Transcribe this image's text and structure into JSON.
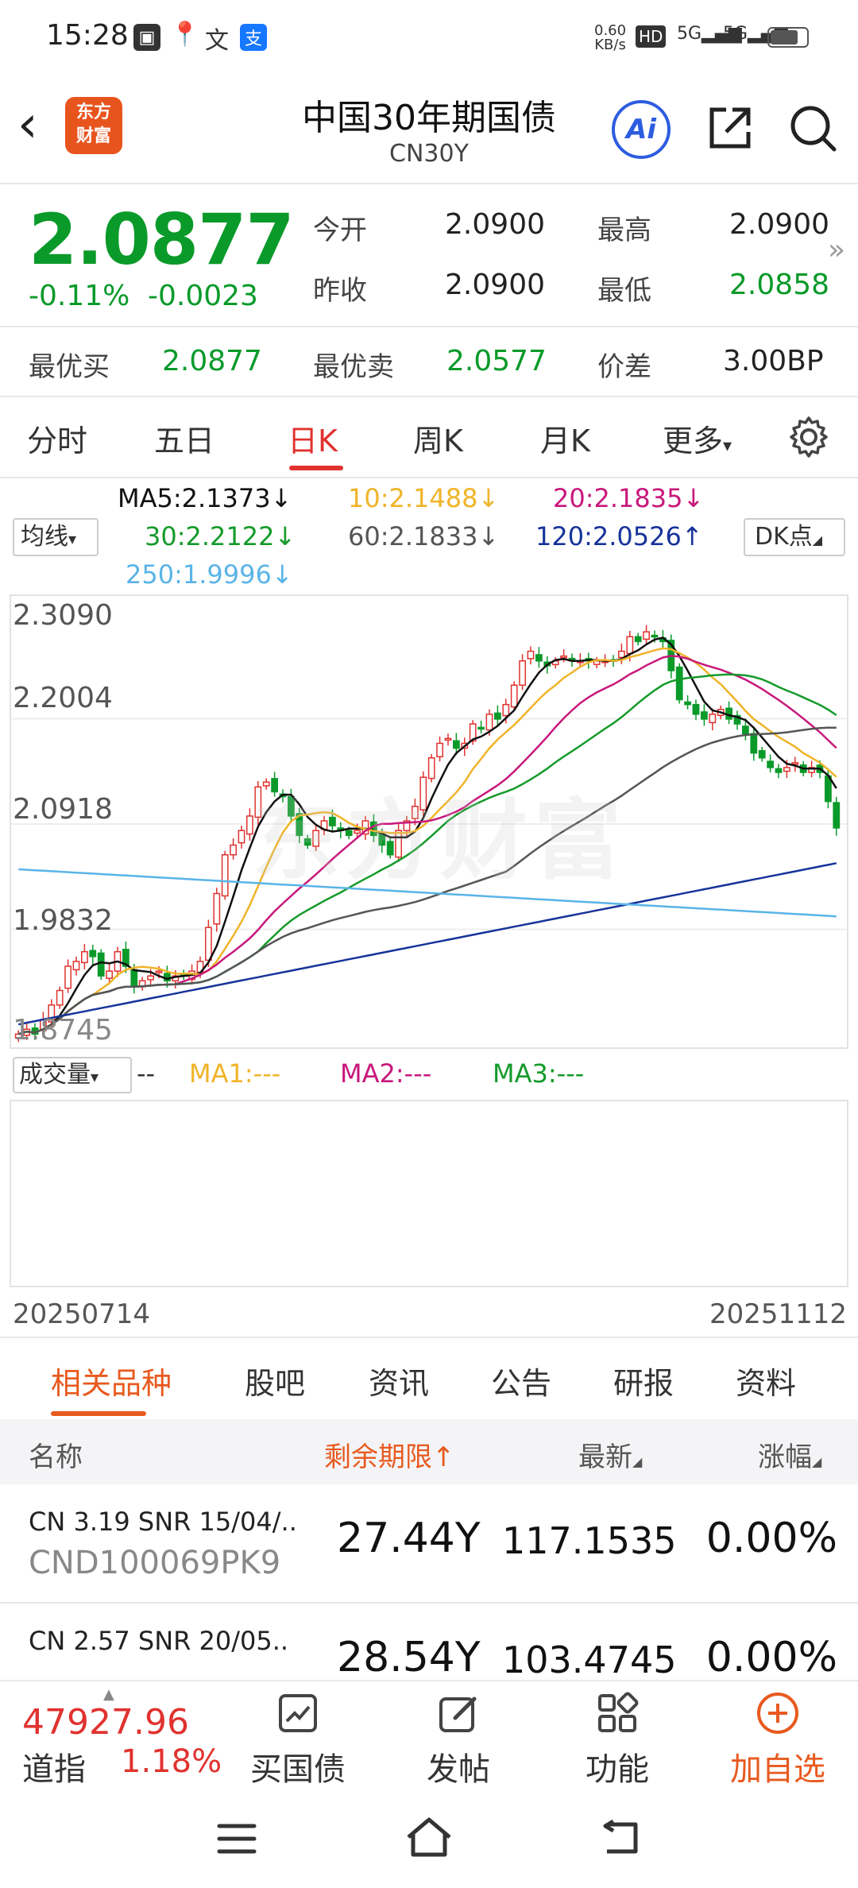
{
  "status_bar": {
    "time": "15:28",
    "net_speed_value": "0.60",
    "net_speed_unit": "KB/s",
    "hd": "HD",
    "sim1": "5G",
    "sim2": "5G",
    "notif_icons": [
      "gallery-icon",
      "maps-icon",
      "wen-icon",
      "alipay-icon"
    ]
  },
  "header": {
    "logo_line1": "东方",
    "logo_line2": "财富",
    "title": "中国30年期国债",
    "code": "CN30Y",
    "ai_label": "Ai"
  },
  "quote": {
    "price": "2.0877",
    "change_pct": "-0.11%",
    "change": "-0.0023",
    "open_label": "今开",
    "open": "2.0900",
    "high_label": "最高",
    "high": "2.0900",
    "prev_close_label": "昨收",
    "prev_close": "2.0900",
    "low_label": "最低",
    "low": "2.0858",
    "best_bid_label": "最优买",
    "best_bid": "2.0877",
    "best_ask_label": "最优卖",
    "best_ask": "2.0577",
    "spread_label": "价差",
    "spread": "3.00BP"
  },
  "period_tabs": [
    {
      "label": "分时"
    },
    {
      "label": "五日"
    },
    {
      "label": "日K"
    },
    {
      "label": "周K"
    },
    {
      "label": "月K"
    },
    {
      "label": "更多"
    }
  ],
  "ma_legend": {
    "selector": "均线",
    "dk": "DK点",
    "ma5": "MA5:2.1373↓",
    "ma10": "10:2.1488↓",
    "ma20": "20:2.1835↓",
    "ma30": "30:2.2122↓",
    "ma60": "60:2.1833↓",
    "ma120": "120:2.0526↑",
    "ma250": "250:1.9996↓",
    "colors": {
      "ma5": "#111111",
      "ma10": "#f0b429",
      "ma20": "#c8187c",
      "ma30": "#159a2a",
      "ma60": "#555555",
      "ma120": "#17339a",
      "ma250": "#5ab4e8"
    }
  },
  "chart": {
    "y_labels": [
      "2.3090",
      "2.2004",
      "2.0918",
      "1.9832",
      "1.8745"
    ],
    "watermark": "东方财富",
    "start_date": "20250714",
    "end_date": "20251112",
    "up_color": "#e0322f",
    "down_color": "#0a9a2a"
  },
  "chart_data": {
    "type": "candlestick",
    "ylim": [
      1.8745,
      2.309
    ],
    "x_range": [
      "20250714",
      "20251112"
    ],
    "closes": [
      1.875,
      1.88,
      1.875,
      1.89,
      1.905,
      1.92,
      1.945,
      1.95,
      1.96,
      1.955,
      1.935,
      1.94,
      1.96,
      1.945,
      1.925,
      1.93,
      1.935,
      1.94,
      1.93,
      1.935,
      1.935,
      1.94,
      1.95,
      1.985,
      2.02,
      2.06,
      2.07,
      2.085,
      2.1,
      2.13,
      2.135,
      2.125,
      2.12,
      2.1,
      2.08,
      2.07,
      2.085,
      2.095,
      2.09,
      2.085,
      2.08,
      2.085,
      2.095,
      2.08,
      2.07,
      2.06,
      2.085,
      2.095,
      2.11,
      2.14,
      2.16,
      2.175,
      2.18,
      2.17,
      2.175,
      2.195,
      2.19,
      2.205,
      2.2,
      2.215,
      2.235,
      2.26,
      2.27,
      2.26,
      2.255,
      2.26,
      2.265,
      2.26,
      2.26,
      2.26,
      2.26,
      2.26,
      2.26,
      2.27,
      2.285,
      2.28,
      2.29,
      2.285,
      2.28,
      2.25,
      2.22,
      2.215,
      2.205,
      2.2,
      2.205,
      2.21,
      2.2,
      2.195,
      2.185,
      2.165,
      2.16,
      2.15,
      2.145,
      2.15,
      2.155,
      2.145,
      2.15,
      2.145,
      2.115,
      2.0877
    ]
  },
  "volume_legend": {
    "selector": "成交量",
    "dashes": "--",
    "ma1": "MA1:---",
    "ma2": "MA2:---",
    "ma3": "MA3:---",
    "ma1_color": "#f0b429",
    "ma2_color": "#c8187c",
    "ma3_color": "#159a2a"
  },
  "sections": [
    {
      "label": "相关品种"
    },
    {
      "label": "股吧"
    },
    {
      "label": "资讯"
    },
    {
      "label": "公告"
    },
    {
      "label": "研报"
    },
    {
      "label": "资料"
    }
  ],
  "table": {
    "col_name": "名称",
    "col_term": "剩余期限↑",
    "col_latest": "最新",
    "col_change": "涨幅",
    "rows": [
      {
        "name": "CN 3.19 SNR 15/04/..",
        "code": "CND100069PK9",
        "term": "27.44Y",
        "latest": "117.1535",
        "change": "0.00%"
      },
      {
        "name": "CN 2.57 SNR 20/05..",
        "code": "",
        "term": "28.54Y",
        "latest": "103.4745",
        "change": "0.00%"
      }
    ]
  },
  "toolbar": {
    "index_value": "47927.96",
    "index_name": "道指",
    "index_pct": "1.18%",
    "buy_bond": "买国债",
    "post": "发帖",
    "functions": "功能",
    "add_watch": "加自选"
  }
}
